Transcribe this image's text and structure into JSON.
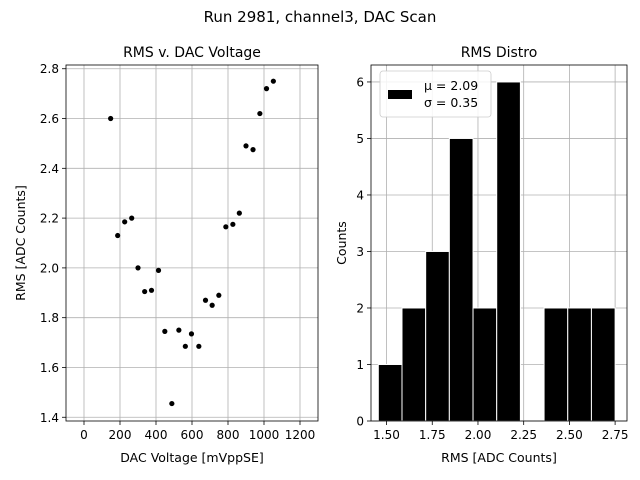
{
  "suptitle": "Run 2981, channel3, DAC Scan",
  "chart_data": [
    {
      "type": "scatter",
      "title": "RMS v. DAC Voltage",
      "xlabel": "DAC Voltage [mVppSE]",
      "ylabel": "RMS [ADC Counts]",
      "xlim": [
        -100,
        1300
      ],
      "ylim": [
        1.385,
        2.815
      ],
      "xticks": [
        0,
        200,
        400,
        600,
        800,
        1000,
        1200
      ],
      "yticks": [
        1.4,
        1.6,
        1.8,
        2.0,
        2.2,
        2.4,
        2.6,
        2.8
      ],
      "xtick_labels": [
        "0",
        "200",
        "400",
        "600",
        "800",
        "1000",
        "1200"
      ],
      "ytick_labels": [
        "1.4",
        "1.6",
        "1.8",
        "2.0",
        "2.2",
        "2.4",
        "2.6",
        "2.8"
      ],
      "grid": true,
      "color": "#000000",
      "points": [
        {
          "x": 148,
          "y": 2.6
        },
        {
          "x": 187,
          "y": 2.13
        },
        {
          "x": 226,
          "y": 2.185
        },
        {
          "x": 265,
          "y": 2.2
        },
        {
          "x": 300,
          "y": 2.0
        },
        {
          "x": 337,
          "y": 1.905
        },
        {
          "x": 375,
          "y": 1.91
        },
        {
          "x": 414,
          "y": 1.99
        },
        {
          "x": 449,
          "y": 1.745
        },
        {
          "x": 488,
          "y": 1.455
        },
        {
          "x": 527,
          "y": 1.75
        },
        {
          "x": 563,
          "y": 1.685
        },
        {
          "x": 597,
          "y": 1.735
        },
        {
          "x": 638,
          "y": 1.685
        },
        {
          "x": 675,
          "y": 1.87
        },
        {
          "x": 712,
          "y": 1.85
        },
        {
          "x": 749,
          "y": 1.89
        },
        {
          "x": 788,
          "y": 2.165
        },
        {
          "x": 827,
          "y": 2.175
        },
        {
          "x": 863,
          "y": 2.22
        },
        {
          "x": 900,
          "y": 2.49
        },
        {
          "x": 939,
          "y": 2.475
        },
        {
          "x": 977,
          "y": 2.62
        },
        {
          "x": 1014,
          "y": 2.72
        },
        {
          "x": 1052,
          "y": 2.75
        }
      ]
    },
    {
      "type": "bar",
      "title": "RMS Distro",
      "xlabel": "RMS [ADC Counts]",
      "ylabel": "Counts",
      "xlim": [
        1.415,
        2.815
      ],
      "ylim": [
        0,
        6.3
      ],
      "xticks": [
        1.5,
        1.75,
        2.0,
        2.25,
        2.5,
        2.75
      ],
      "yticks": [
        0,
        1,
        2,
        3,
        4,
        5,
        6
      ],
      "xtick_labels": [
        "1.50",
        "1.75",
        "2.00",
        "2.25",
        "2.50",
        "2.75"
      ],
      "ytick_labels": [
        "0",
        "1",
        "2",
        "3",
        "4",
        "5",
        "6"
      ],
      "grid": true,
      "color": "#000000",
      "edgecolor": "#ffffff",
      "bin_edges": [
        1.455,
        1.5845,
        1.714,
        1.8435,
        1.973,
        2.1025,
        2.232,
        2.3615,
        2.491,
        2.6205,
        2.75
      ],
      "counts": [
        1,
        2,
        3,
        5,
        2,
        6,
        0,
        2,
        2,
        2
      ],
      "legend": {
        "location": "upper left",
        "entries": [
          "μ = 2.09",
          "σ = 0.35"
        ]
      }
    }
  ]
}
